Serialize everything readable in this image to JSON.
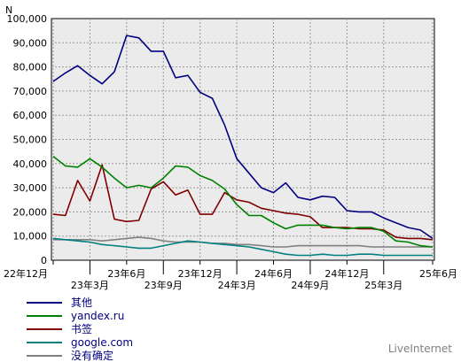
{
  "chart_data": {
    "type": "line",
    "ylabel": "N",
    "ylim": [
      0,
      100000
    ],
    "yticks": [
      0,
      10000,
      20000,
      30000,
      40000,
      50000,
      60000,
      70000,
      80000,
      90000,
      100000
    ],
    "ytick_labels": [
      "0",
      "10,000",
      "20,000",
      "30,000",
      "40,000",
      "50,000",
      "60,000",
      "70,000",
      "80,000",
      "90,000",
      "100,000"
    ],
    "x_count": 32,
    "xticks": [
      {
        "i": 0,
        "label": "22年12月",
        "row": 0
      },
      {
        "i": 3,
        "label": "23年3月",
        "row": 1
      },
      {
        "i": 6,
        "label": "23年6月",
        "row": 0
      },
      {
        "i": 9,
        "label": "23年9月",
        "row": 1
      },
      {
        "i": 12,
        "label": "23年12月",
        "row": 0
      },
      {
        "i": 15,
        "label": "24年3月",
        "row": 1
      },
      {
        "i": 18,
        "label": "24年6月",
        "row": 0
      },
      {
        "i": 21,
        "label": "24年9月",
        "row": 1
      },
      {
        "i": 24,
        "label": "24年12月",
        "row": 0
      },
      {
        "i": 27,
        "label": "25年3月",
        "row": 1
      },
      {
        "i": 31,
        "label": "25年6月",
        "row": 0
      }
    ],
    "series": [
      {
        "name": "其他",
        "color": "#000080",
        "values": [
          74000,
          77500,
          80500,
          76500,
          73000,
          78000,
          93000,
          92000,
          86500,
          86500,
          75500,
          76500,
          69500,
          67000,
          56000,
          42000,
          36000,
          30000,
          28000,
          32000,
          26000,
          25000,
          26500,
          26000,
          20500,
          20000,
          20000,
          17500,
          15500,
          13500,
          12500,
          9000
        ]
      },
      {
        "name": "yandex.ru",
        "color": "#008000",
        "values": [
          43000,
          39000,
          38500,
          42000,
          38500,
          34000,
          30000,
          31000,
          30000,
          34000,
          39000,
          38500,
          35000,
          33000,
          29500,
          23000,
          18500,
          18500,
          15500,
          13000,
          14500,
          14500,
          14500,
          13500,
          13000,
          13500,
          13500,
          12000,
          8000,
          7500,
          6000,
          5500
        ]
      },
      {
        "name": "书签",
        "color": "#800000",
        "values": [
          19000,
          18500,
          33000,
          24500,
          39500,
          17000,
          16000,
          16500,
          29500,
          32500,
          27000,
          29000,
          19000,
          19000,
          28000,
          25000,
          24000,
          21500,
          20500,
          19500,
          19000,
          18000,
          13500,
          13500,
          13500,
          13000,
          13000,
          12500,
          9500,
          9000,
          9000,
          8500
        ]
      },
      {
        "name": "google.com",
        "color": "#008080",
        "values": [
          9000,
          8500,
          8000,
          7500,
          6500,
          6000,
          5500,
          5000,
          5000,
          6000,
          7000,
          8000,
          7500,
          7000,
          6500,
          6000,
          5500,
          4500,
          3500,
          2500,
          2000,
          2000,
          2500,
          2000,
          2000,
          2500,
          2500,
          2000,
          2000,
          2000,
          2000,
          2000
        ]
      },
      {
        "name": "没有确定",
        "color": "#808080",
        "values": [
          8500,
          8500,
          8500,
          8500,
          8000,
          8500,
          9000,
          9500,
          9000,
          8000,
          7500,
          7500,
          7500,
          7000,
          7000,
          6500,
          6500,
          6000,
          5500,
          5500,
          6000,
          6000,
          6000,
          6000,
          6000,
          6000,
          5500,
          5500,
          5500,
          5500,
          5500,
          5500
        ]
      }
    ]
  },
  "credit": "LiveInternet"
}
